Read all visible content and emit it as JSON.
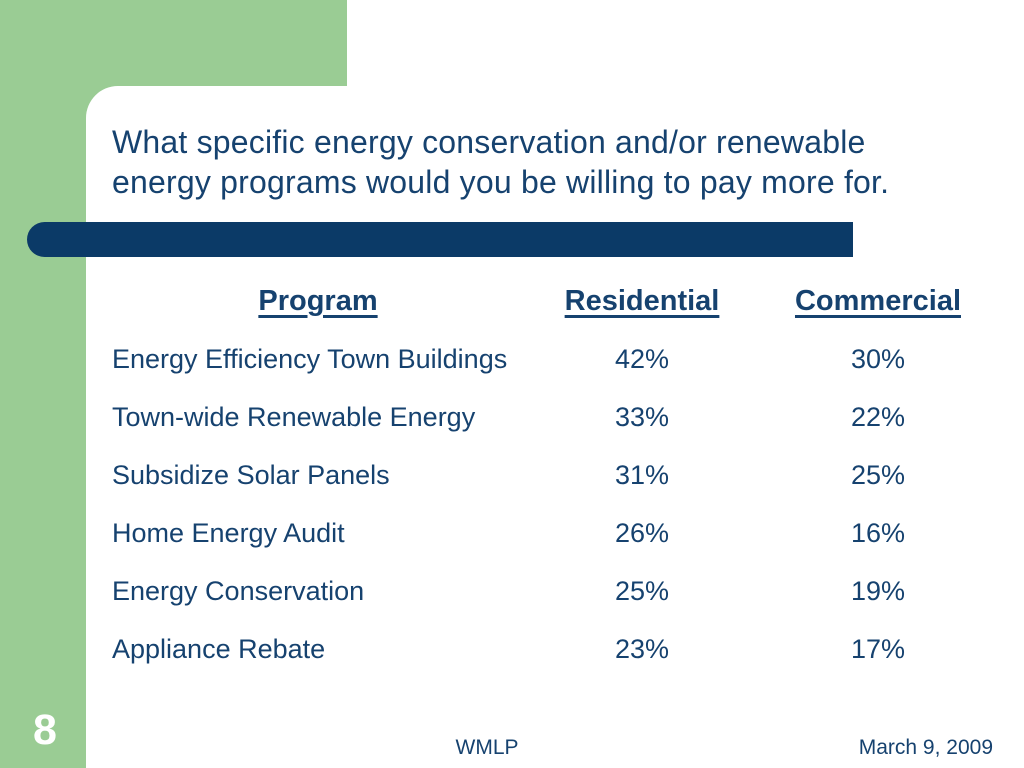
{
  "slide": {
    "title_lines": [
      "What specific energy conservation and/or renewable",
      "energy programs would you be willing to pay more for."
    ],
    "page_number": "8",
    "footer": {
      "center": "WMLP",
      "right": "March 9, 2009"
    }
  },
  "table": {
    "headers": {
      "program": "Program",
      "residential": "Residential",
      "commercial": "Commercial"
    },
    "rows": [
      {
        "program": "Energy Efficiency Town Buildings",
        "residential": "42%",
        "commercial": "30%"
      },
      {
        "program": "Town-wide Renewable Energy",
        "residential": "33%",
        "commercial": "22%"
      },
      {
        "program": "Subsidize Solar Panels",
        "residential": "31%",
        "commercial": "25%"
      },
      {
        "program": "Home Energy Audit",
        "residential": "26%",
        "commercial": "16%"
      },
      {
        "program": "Energy Conservation",
        "residential": "25%",
        "commercial": "19%"
      },
      {
        "program": "Appliance Rebate",
        "residential": "23%",
        "commercial": "17%"
      }
    ]
  },
  "colors": {
    "accent_green": "#9ACC94",
    "navy_bar": "#0B3A67",
    "text_navy": "#16426F",
    "page_number_text": "#FFFFFF"
  },
  "chart_data": {
    "type": "table",
    "title": "What specific energy conservation and/or renewable energy programs would you be willing to pay more for.",
    "columns": [
      "Program",
      "Residential",
      "Commercial"
    ],
    "rows": [
      [
        "Energy Efficiency Town Buildings",
        "42%",
        "30%"
      ],
      [
        "Town-wide Renewable Energy",
        "33%",
        "22%"
      ],
      [
        "Subsidize Solar Panels",
        "31%",
        "25%"
      ],
      [
        "Home Energy Audit",
        "26%",
        "16%"
      ],
      [
        "Energy Conservation",
        "25%",
        "19%"
      ],
      [
        "Appliance Rebate",
        "23%",
        "17%"
      ]
    ],
    "values_residential": [
      42,
      33,
      31,
      26,
      25,
      23
    ],
    "values_commercial": [
      30,
      22,
      25,
      16,
      19,
      17
    ],
    "units": "percent"
  }
}
